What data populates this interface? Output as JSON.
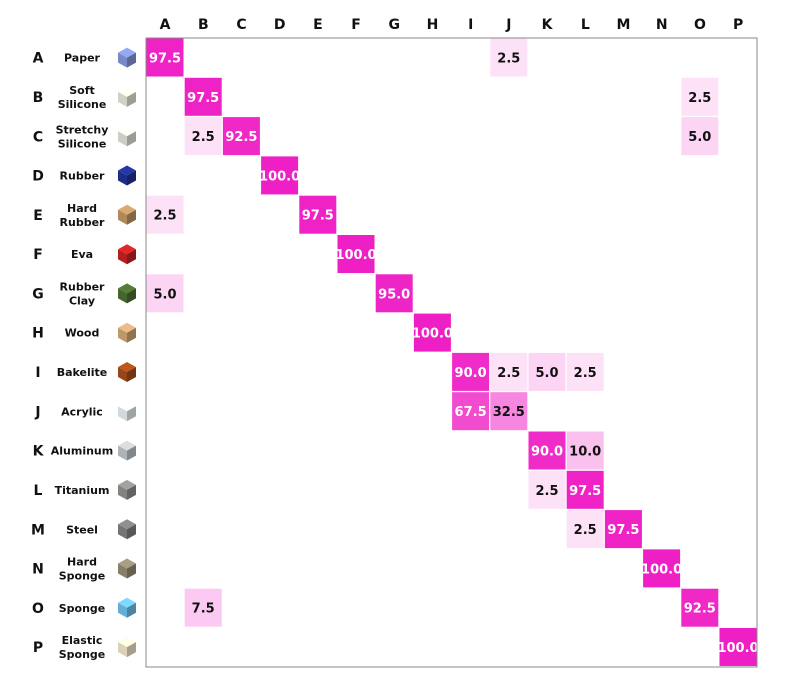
{
  "chart_data": {
    "type": "heatmap",
    "title": "",
    "xlabel": "",
    "ylabel": "",
    "columns": [
      "A",
      "B",
      "C",
      "D",
      "E",
      "F",
      "G",
      "H",
      "I",
      "J",
      "K",
      "L",
      "M",
      "N",
      "O",
      "P"
    ],
    "rows": [
      {
        "letter": "A",
        "name": [
          "Paper"
        ],
        "icon": "paper-cube-icon",
        "icon_color": "#7f8fd0"
      },
      {
        "letter": "B",
        "name": [
          "Soft",
          "Silicone"
        ],
        "icon": "soft-silicone-cube-icon",
        "icon_color": "#dcdcd0"
      },
      {
        "letter": "C",
        "name": [
          "Stretchy",
          "Silicone"
        ],
        "icon": "stretchy-silicone-cube-icon",
        "icon_color": "#d8d8d0"
      },
      {
        "letter": "D",
        "name": [
          "Rubber"
        ],
        "icon": "rubber-cube-icon",
        "icon_color": "#1e2f8c"
      },
      {
        "letter": "E",
        "name": [
          "Hard",
          "Rubber"
        ],
        "icon": "hard-rubber-cube-icon",
        "icon_color": "#b89060"
      },
      {
        "letter": "F",
        "name": [
          "Eva"
        ],
        "icon": "eva-cube-icon",
        "icon_color": "#c02020"
      },
      {
        "letter": "G",
        "name": [
          "Rubber",
          "Clay"
        ],
        "icon": "rubber-clay-cube-icon",
        "icon_color": "#4a6a30"
      },
      {
        "letter": "H",
        "name": [
          "Wood"
        ],
        "icon": "wood-cube-icon",
        "icon_color": "#c8a070"
      },
      {
        "letter": "I",
        "name": [
          "Bakelite"
        ],
        "icon": "bakelite-cube-icon",
        "icon_color": "#a04a18"
      },
      {
        "letter": "J",
        "name": [
          "Acrylic"
        ],
        "icon": "acrylic-cube-icon",
        "icon_color": "#dde4e8"
      },
      {
        "letter": "K",
        "name": [
          "Aluminum"
        ],
        "icon": "aluminum-cube-icon",
        "icon_color": "#b8bcc0"
      },
      {
        "letter": "L",
        "name": [
          "Titanium"
        ],
        "icon": "titanium-cube-icon",
        "icon_color": "#8a8a88"
      },
      {
        "letter": "M",
        "name": [
          "Steel"
        ],
        "icon": "steel-cube-icon",
        "icon_color": "#7a7a7a"
      },
      {
        "letter": "N",
        "name": [
          "Hard",
          "Sponge"
        ],
        "icon": "hard-sponge-cube-icon",
        "icon_color": "#8f8670"
      },
      {
        "letter": "O",
        "name": [
          "Sponge"
        ],
        "icon": "sponge-cube-icon",
        "icon_color": "#6ab8e0"
      },
      {
        "letter": "P",
        "name": [
          "Elastic",
          "Sponge"
        ],
        "icon": "elastic-sponge-cube-icon",
        "icon_color": "#e6dcc0"
      }
    ],
    "cells": [
      {
        "row": 0,
        "col": 0,
        "value": 97.5,
        "label": "97.5"
      },
      {
        "row": 0,
        "col": 9,
        "value": 2.5,
        "label": "2.5"
      },
      {
        "row": 1,
        "col": 1,
        "value": 97.5,
        "label": "97.5"
      },
      {
        "row": 1,
        "col": 14,
        "value": 2.5,
        "label": "2.5"
      },
      {
        "row": 2,
        "col": 1,
        "value": 2.5,
        "label": "2.5"
      },
      {
        "row": 2,
        "col": 2,
        "value": 92.5,
        "label": "92.5"
      },
      {
        "row": 2,
        "col": 14,
        "value": 5.0,
        "label": "5.0"
      },
      {
        "row": 3,
        "col": 3,
        "value": 100.0,
        "label": "100.0"
      },
      {
        "row": 4,
        "col": 0,
        "value": 2.5,
        "label": "2.5"
      },
      {
        "row": 4,
        "col": 4,
        "value": 97.5,
        "label": "97.5"
      },
      {
        "row": 5,
        "col": 5,
        "value": 100.0,
        "label": "100.0"
      },
      {
        "row": 6,
        "col": 0,
        "value": 5.0,
        "label": "5.0"
      },
      {
        "row": 6,
        "col": 6,
        "value": 95.0,
        "label": "95.0"
      },
      {
        "row": 7,
        "col": 7,
        "value": 100.0,
        "label": "100.0"
      },
      {
        "row": 8,
        "col": 8,
        "value": 90.0,
        "label": "90.0"
      },
      {
        "row": 8,
        "col": 9,
        "value": 2.5,
        "label": "2.5"
      },
      {
        "row": 8,
        "col": 10,
        "value": 5.0,
        "label": "5.0"
      },
      {
        "row": 8,
        "col": 11,
        "value": 2.5,
        "label": "2.5"
      },
      {
        "row": 9,
        "col": 8,
        "value": 67.5,
        "label": "67.5"
      },
      {
        "row": 9,
        "col": 9,
        "value": 32.5,
        "label": "32.5"
      },
      {
        "row": 10,
        "col": 10,
        "value": 90.0,
        "label": "90.0"
      },
      {
        "row": 10,
        "col": 11,
        "value": 10.0,
        "label": "10.0"
      },
      {
        "row": 11,
        "col": 10,
        "value": 2.5,
        "label": "2.5"
      },
      {
        "row": 11,
        "col": 11,
        "value": 97.5,
        "label": "97.5"
      },
      {
        "row": 12,
        "col": 11,
        "value": 2.5,
        "label": "2.5"
      },
      {
        "row": 12,
        "col": 12,
        "value": 97.5,
        "label": "97.5"
      },
      {
        "row": 13,
        "col": 13,
        "value": 100.0,
        "label": "100.0"
      },
      {
        "row": 14,
        "col": 1,
        "value": 7.5,
        "label": "7.5"
      },
      {
        "row": 14,
        "col": 14,
        "value": 92.5,
        "label": "92.5"
      },
      {
        "row": 15,
        "col": 15,
        "value": 100.0,
        "label": "100.0"
      }
    ],
    "value_range": [
      0,
      100
    ],
    "color_low": "#ffffff",
    "color_high": "#ee1fc4",
    "grid": false,
    "legend": "none"
  }
}
